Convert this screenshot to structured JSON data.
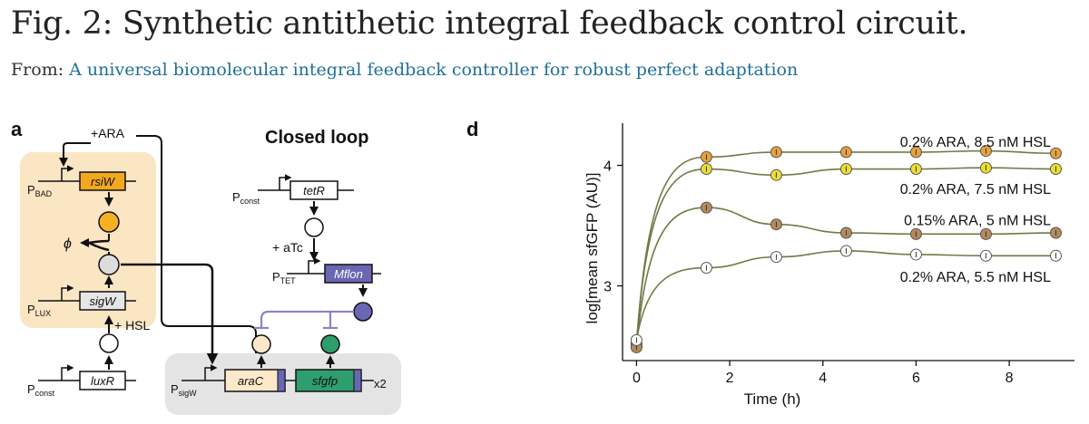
{
  "figure": {
    "title": "Fig. 2: Synthetic antithetic integral feedback control circuit.",
    "from_label": "From:",
    "source_link": "A universal biomolecular integral feedback controller for robust perfect adaptation"
  },
  "panel_a": {
    "label": "a",
    "heading": "Closed loop",
    "inducer_ara": "+ARA",
    "inducer_hsl": "+ HSL",
    "inducer_atc": "+ aTc",
    "degradation_symbol": "ϕ",
    "copy_number": "x2",
    "promoters": {
      "bad": {
        "main": "P",
        "sub": "BAD"
      },
      "lux": {
        "main": "P",
        "sub": "LUX"
      },
      "const_left": {
        "main": "P",
        "sub": "const"
      },
      "const_right": {
        "main": "P",
        "sub": "const"
      },
      "tet": {
        "main": "P",
        "sub": "TET"
      },
      "sigw": {
        "main": "P",
        "sub": "sigW"
      }
    },
    "genes": {
      "rsiw": "rsiW",
      "sigw": "sigW",
      "luxr": "luxR",
      "tetr": "tetR",
      "mflon": "Mflon",
      "arac": "araC",
      "sfgfp": "sfgfp"
    },
    "colors": {
      "controller_bg": "#fbe6c4",
      "host_bg": "#e4e4e4",
      "rsiw_gene": "#f2a81d",
      "rsiw_protein": "#f6b021",
      "sigw_gene": "#e6e6e6",
      "sigw_protein": "#dcdcdc",
      "mflon": "#6b66b3",
      "arac": "#fde9c9",
      "sfgfp": "#2e9e6e",
      "repression": "#8a84c7"
    }
  },
  "panel_d": {
    "label": "d"
  },
  "chart_data": {
    "type": "line",
    "xlabel": "Time (h)",
    "ylabel": "log[mean sfGFP (AU)]",
    "xlim": [
      -0.3,
      9.4
    ],
    "ylim": [
      2.38,
      4.35
    ],
    "xticks": [
      0,
      2,
      4,
      6,
      8
    ],
    "yticks": [
      3,
      4
    ],
    "grid": false,
    "legend": "inline labels at right",
    "series": [
      {
        "name": "0.2% ARA, 8.5 nM HSL",
        "color": "#e9a23a",
        "x": [
          0,
          1.5,
          3,
          4.5,
          6,
          7.5,
          9
        ],
        "y": [
          2.5,
          4.07,
          4.11,
          4.11,
          4.11,
          4.12,
          4.1
        ]
      },
      {
        "name": "0.2% ARA, 7.5 nM HSL",
        "color": "#eede2c",
        "x": [
          0,
          1.5,
          3,
          4.5,
          6,
          7.5,
          9
        ],
        "y": [
          2.52,
          3.97,
          3.92,
          3.97,
          3.97,
          3.98,
          3.97
        ]
      },
      {
        "name": "0.15% ARA, 5 nM HSL",
        "color": "#b68a5c",
        "x": [
          0,
          1.5,
          3,
          4.5,
          6,
          7.5,
          9
        ],
        "y": [
          2.49,
          3.65,
          3.51,
          3.44,
          3.43,
          3.43,
          3.44
        ]
      },
      {
        "name": "0.2% ARA, 5.5 nM HSL",
        "color": "#ffffff",
        "x": [
          0,
          1.5,
          3,
          4.5,
          6,
          7.5,
          9
        ],
        "y": [
          2.55,
          3.15,
          3.24,
          3.29,
          3.26,
          3.25,
          3.25
        ]
      }
    ],
    "line_color": "#6f7a46"
  }
}
